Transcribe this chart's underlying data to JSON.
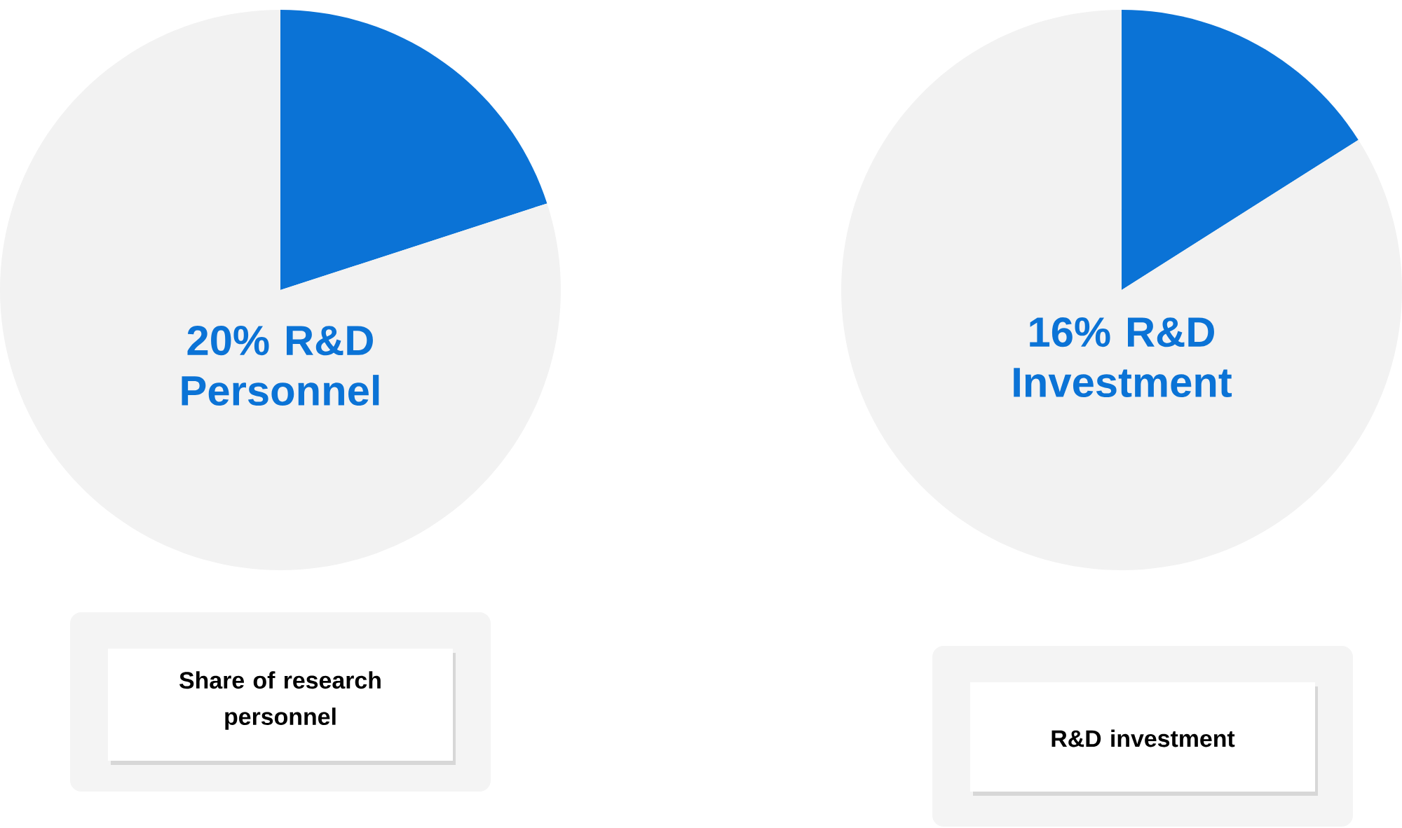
{
  "chart_data": [
    {
      "type": "pie",
      "title": "Share of research personnel",
      "categories": [
        null,
        null
      ],
      "values": [
        20,
        80
      ],
      "colors": [
        "#0b73d6",
        "#f2f2f2"
      ],
      "annotations": [
        "20% R&D Personnel"
      ]
    },
    {
      "type": "pie",
      "title": "R&D investment",
      "categories": [
        null,
        null
      ],
      "values": [
        16,
        84
      ],
      "colors": [
        "#0b73d6",
        "#f2f2f2"
      ],
      "annotations": [
        "16% R&D Investment"
      ]
    }
  ]
}
